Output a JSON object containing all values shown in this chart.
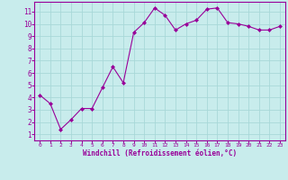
{
  "x": [
    0,
    1,
    2,
    3,
    4,
    5,
    6,
    7,
    8,
    9,
    10,
    11,
    12,
    13,
    14,
    15,
    16,
    17,
    18,
    19,
    20,
    21,
    22,
    23
  ],
  "y": [
    4.2,
    3.5,
    1.4,
    2.2,
    3.1,
    3.1,
    4.8,
    6.5,
    5.2,
    9.3,
    10.1,
    11.3,
    10.7,
    9.5,
    10.0,
    10.3,
    11.2,
    11.3,
    10.1,
    10.0,
    9.8,
    9.5,
    9.5,
    9.8
  ],
  "line_color": "#990099",
  "marker": "D",
  "marker_size": 2.0,
  "bg_color": "#c8ecec",
  "grid_color": "#a8d8d8",
  "xlabel": "Windchill (Refroidissement éolien,°C)",
  "tick_color": "#990099",
  "ylim": [
    0.5,
    11.8
  ],
  "xlim": [
    -0.5,
    23.5
  ],
  "yticks": [
    1,
    2,
    3,
    4,
    5,
    6,
    7,
    8,
    9,
    10,
    11
  ],
  "xticks": [
    0,
    1,
    2,
    3,
    4,
    5,
    6,
    7,
    8,
    9,
    10,
    11,
    12,
    13,
    14,
    15,
    16,
    17,
    18,
    19,
    20,
    21,
    22,
    23
  ],
  "spine_color": "#990099",
  "line_style": "-",
  "linewidth": 0.8
}
